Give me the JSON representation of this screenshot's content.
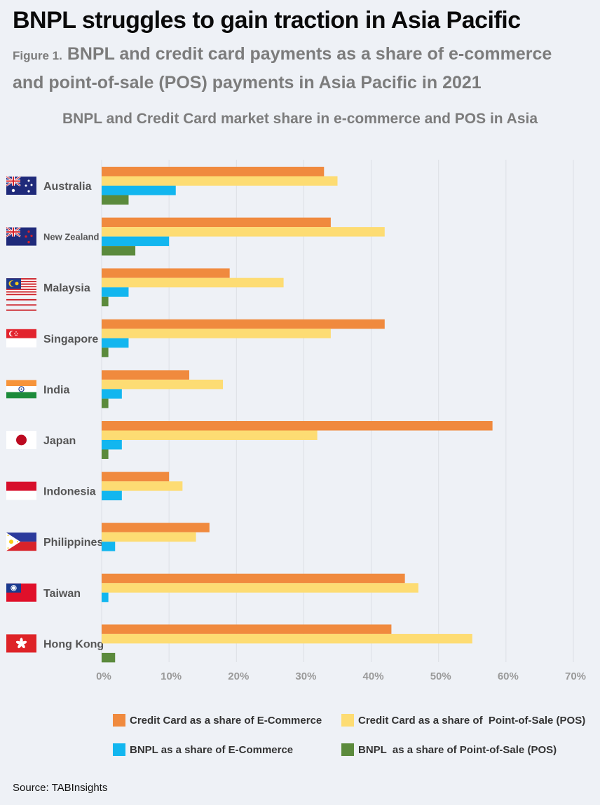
{
  "header": {
    "headline": "BNPL struggles to gain traction in Asia Pacific",
    "figure_label": "Figure 1.",
    "subtitle": "BNPL and credit card payments as a share of e-commerce and point-of-sale (POS) payments in Asia Pacific in 2021"
  },
  "source": "Source: TABInsights",
  "colors": {
    "cc_ecom": "#f08a3e",
    "cc_pos": "#fddc73",
    "bnpl_ecom": "#12b6ef",
    "bnpl_pos": "#5b8a3c",
    "grid": "#dcdfe5",
    "axis_text": "#9a9a9a"
  },
  "chart_data": {
    "type": "bar",
    "orientation": "horizontal",
    "title": "BNPL and Credit Card market share in e-commerce and POS in Asia",
    "categories": [
      "Australia",
      "New Zealand",
      "Malaysia",
      "Singapore",
      "India",
      "Japan",
      "Indonesia",
      "Philippines",
      "Taiwan",
      "Hong Kong"
    ],
    "flag_icons": [
      "australia-flag-icon",
      "new-zealand-flag-icon",
      "malaysia-flag-icon",
      "singapore-flag-icon",
      "india-flag-icon",
      "japan-flag-icon",
      "indonesia-flag-icon",
      "philippines-flag-icon",
      "taiwan-flag-icon",
      "hong-kong-flag-icon"
    ],
    "series": [
      {
        "name": "Credit Card as a share of E-Commerce",
        "color": "#f08a3e",
        "values": [
          33,
          34,
          19,
          42,
          13,
          58,
          10,
          16,
          45,
          43
        ]
      },
      {
        "name": "Credit Card as a share of  Point-of-Sale (POS)",
        "color": "#fddc73",
        "values": [
          35,
          42,
          27,
          34,
          18,
          32,
          12,
          14,
          47,
          55
        ]
      },
      {
        "name": "BNPL as a share of E-Commerce",
        "color": "#12b6ef",
        "values": [
          11,
          10,
          4,
          4,
          3,
          3,
          3,
          2,
          1,
          0
        ]
      },
      {
        "name": "BNPL  as a share of Point-of-Sale (POS)",
        "color": "#5b8a3c",
        "values": [
          4,
          5,
          1,
          1,
          1,
          1,
          0,
          0,
          0,
          2
        ]
      }
    ],
    "xlim": [
      0,
      70
    ],
    "x_ticks": [
      "0%",
      "10%",
      "20%",
      "30%",
      "40%",
      "50%",
      "60%",
      "70%"
    ],
    "grid": true,
    "legend_position": "bottom"
  }
}
